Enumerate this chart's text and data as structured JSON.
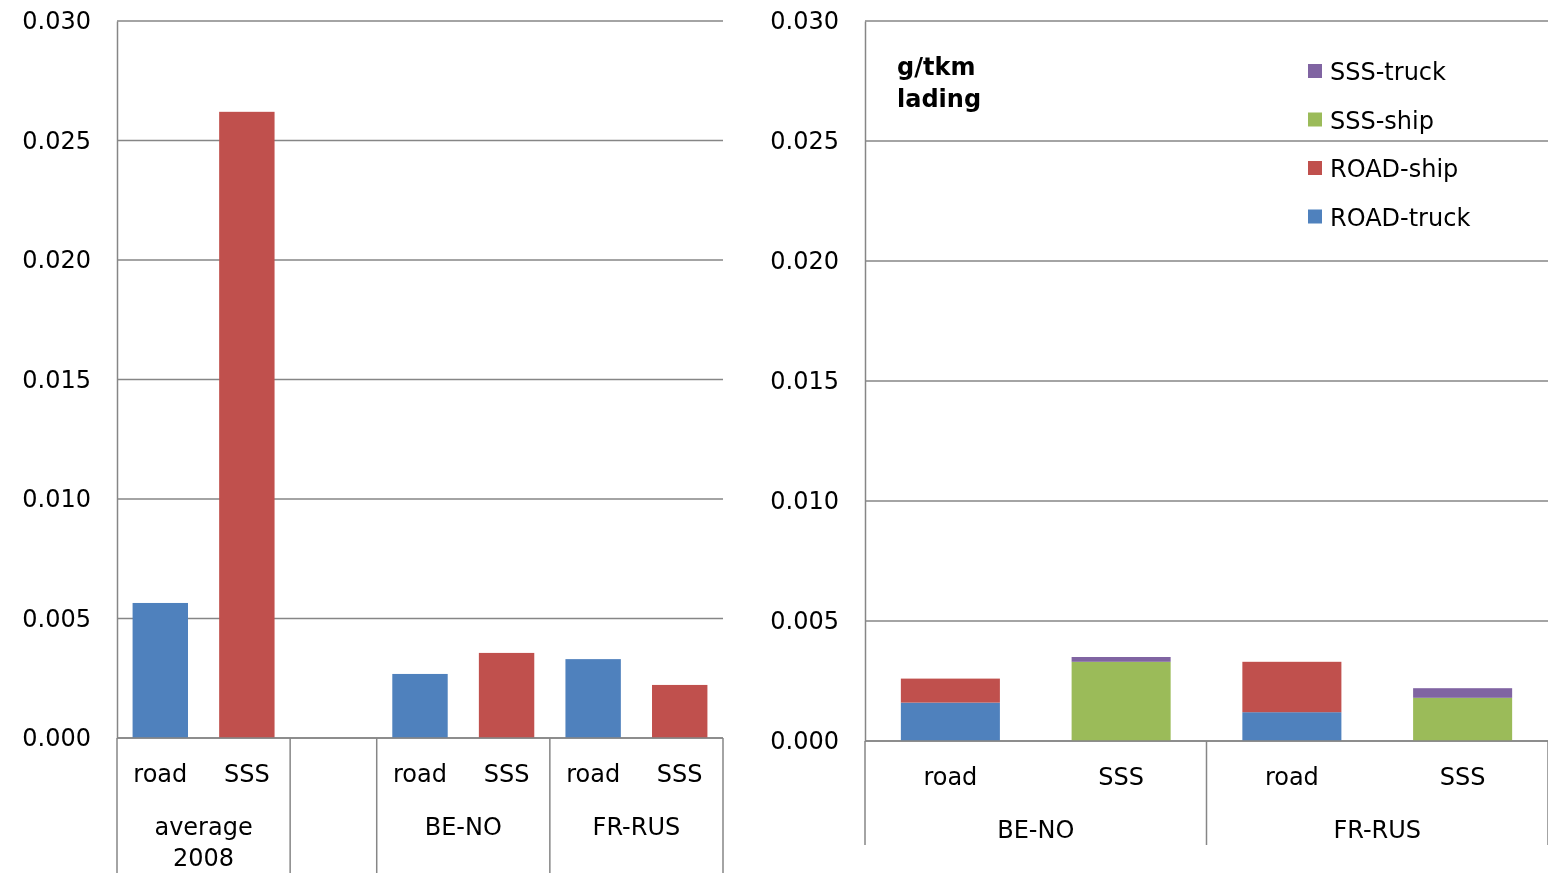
{
  "chart_data": [
    {
      "type": "bar",
      "categories": [
        "road",
        "SSS",
        null,
        "road",
        "SSS",
        "road",
        "SSS"
      ],
      "values": [
        0.00565,
        0.0262,
        null,
        0.00268,
        0.00356,
        0.0033,
        0.00222
      ],
      "colors": [
        "#4f81bd",
        "#c0504d",
        null,
        "#4f81bd",
        "#c0504d",
        "#4f81bd",
        "#c0504d"
      ],
      "ylim": [
        0,
        0.03
      ],
      "yticks": [
        {
          "value": 0,
          "label": "0.000"
        },
        {
          "value": 0.005,
          "label": "0.005"
        },
        {
          "value": 0.01,
          "label": "0.010"
        },
        {
          "value": 0.015,
          "label": "0.015"
        },
        {
          "value": 0.02,
          "label": "0.020"
        },
        {
          "value": 0.025,
          "label": "0.025"
        },
        {
          "value": 0.03,
          "label": "0.030"
        }
      ],
      "grid": "y",
      "annotations": [
        "average 2008",
        "BE-NO",
        "FR-RUS"
      ]
    },
    {
      "type": "bar",
      "stacked": true,
      "categories": [
        "road",
        "SSS",
        "road",
        "SSS"
      ],
      "series": [
        {
          "name": "ROAD-truck",
          "color": "#4f81bd",
          "values": [
            0.0016,
            null,
            0.0012,
            null
          ]
        },
        {
          "name": "ROAD-ship",
          "color": "#c0504d",
          "values": [
            0.001,
            null,
            0.0021,
            null
          ]
        },
        {
          "name": "SSS-ship",
          "color": "#9bbb59",
          "values": [
            null,
            0.0033,
            null,
            0.0018
          ]
        },
        {
          "name": "SSS-truck",
          "color": "#8064a2",
          "values": [
            null,
            0.0002,
            null,
            0.0004
          ]
        }
      ],
      "ylim": [
        0,
        0.03
      ],
      "yticks": [
        {
          "value": 0,
          "label": "0.000"
        },
        {
          "value": 0.005,
          "label": "0.005"
        },
        {
          "value": 0.01,
          "label": "0.010"
        },
        {
          "value": 0.015,
          "label": "0.015"
        },
        {
          "value": 0.02,
          "label": "0.020"
        },
        {
          "value": 0.025,
          "label": "0.025"
        },
        {
          "value": 0.03,
          "label": "0.030"
        }
      ],
      "grid": "y",
      "legend": "top right",
      "ylabel": "g/tkm lading",
      "annotations": [
        "BE-NO",
        "FR-RUS"
      ]
    }
  ]
}
